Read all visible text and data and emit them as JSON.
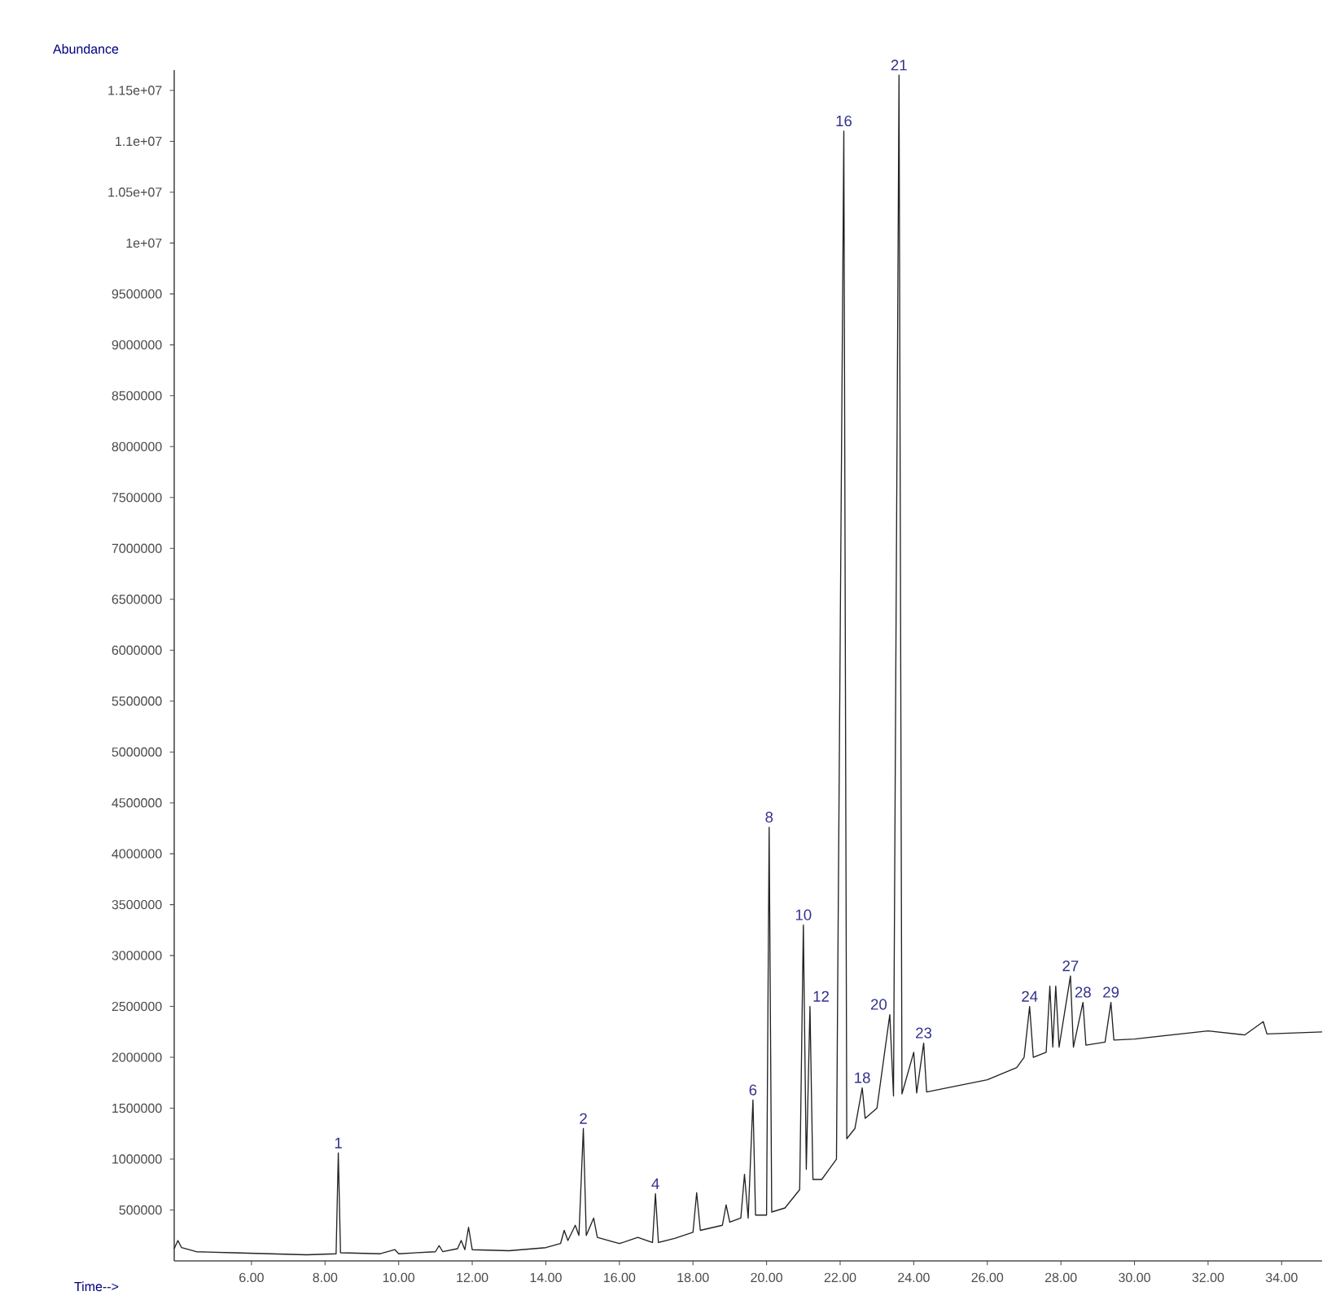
{
  "chart_data": {
    "type": "line",
    "xlabel": "Time-->",
    "ylabel": "Abundance",
    "xlim": [
      3.9,
      35.1
    ],
    "ylim": [
      0,
      11700000
    ],
    "xticks": [
      {
        "value": 6,
        "label": "6.00"
      },
      {
        "value": 8,
        "label": "8.00"
      },
      {
        "value": 10,
        "label": "10.00"
      },
      {
        "value": 12,
        "label": "12.00"
      },
      {
        "value": 14,
        "label": "14.00"
      },
      {
        "value": 16,
        "label": "16.00"
      },
      {
        "value": 18,
        "label": "18.00"
      },
      {
        "value": 20,
        "label": "20.00"
      },
      {
        "value": 22,
        "label": "22.00"
      },
      {
        "value": 24,
        "label": "24.00"
      },
      {
        "value": 26,
        "label": "26.00"
      },
      {
        "value": 28,
        "label": "28.00"
      },
      {
        "value": 30,
        "label": "30.00"
      },
      {
        "value": 32,
        "label": "32.00"
      },
      {
        "value": 34,
        "label": "34.00"
      }
    ],
    "yticks": [
      500000,
      1000000,
      1500000,
      2000000,
      2500000,
      3000000,
      3500000,
      4000000,
      4500000,
      5000000,
      5500000,
      6000000,
      6500000,
      7000000,
      7500000,
      8000000,
      8500000,
      9000000,
      9500000,
      {
        "value": 10000000,
        "label": "1e+07"
      },
      {
        "value": 10500000,
        "label": "1.05e+07"
      },
      {
        "value": 11000000,
        "label": "1.1e+07"
      },
      {
        "value": 11500000,
        "label": "1.15e+07"
      }
    ],
    "series": [
      {
        "color": "#222222",
        "x": [
          3.9,
          4.0,
          4.1,
          4.5,
          5.5,
          6.5,
          7.5,
          8.3,
          8.36,
          8.42,
          9.5,
          9.9,
          10.0,
          11.0,
          11.1,
          11.2,
          11.6,
          11.7,
          11.8,
          11.9,
          12.0,
          13.0,
          14.0,
          14.4,
          14.5,
          14.6,
          14.8,
          14.9,
          15.02,
          15.1,
          15.3,
          15.4,
          16.0,
          16.5,
          16.9,
          16.98,
          17.06,
          17.5,
          18.0,
          18.1,
          18.2,
          18.8,
          18.9,
          19.0,
          19.3,
          19.4,
          19.5,
          19.63,
          19.7,
          20.0,
          20.07,
          20.14,
          20.5,
          20.9,
          21.0,
          21.08,
          21.18,
          21.26,
          21.5,
          21.9,
          22.1,
          22.18,
          22.4,
          22.6,
          22.68,
          23.0,
          23.35,
          23.45,
          23.6,
          23.68,
          24.0,
          24.08,
          24.27,
          24.35,
          26.0,
          26.8,
          27.0,
          27.15,
          27.25,
          27.6,
          27.7,
          27.78,
          27.86,
          27.95,
          28.26,
          28.34,
          28.6,
          28.68,
          29.2,
          29.36,
          29.44,
          30.0,
          32.0,
          33.0,
          33.5,
          33.6,
          35.1
        ],
        "values": [
          120000,
          200000,
          130000,
          90000,
          80000,
          70000,
          60000,
          70000,
          1060000,
          80000,
          70000,
          110000,
          70000,
          90000,
          150000,
          90000,
          120000,
          200000,
          110000,
          330000,
          110000,
          100000,
          130000,
          170000,
          300000,
          200000,
          350000,
          250000,
          1300000,
          250000,
          420000,
          230000,
          170000,
          230000,
          180000,
          660000,
          180000,
          220000,
          280000,
          670000,
          300000,
          350000,
          550000,
          380000,
          420000,
          850000,
          420000,
          1580000,
          450000,
          450000,
          4260000,
          480000,
          520000,
          700000,
          3300000,
          900000,
          2500000,
          800000,
          800000,
          1000000,
          11100000,
          1200000,
          1300000,
          1700000,
          1400000,
          1500000,
          2420000,
          1620000,
          11650000,
          1640000,
          2050000,
          1650000,
          2140000,
          1660000,
          1780000,
          1900000,
          2000000,
          2500000,
          2000000,
          2050000,
          2700000,
          2100000,
          2700000,
          2100000,
          2800000,
          2100000,
          2540000,
          2120000,
          2150000,
          2540000,
          2170000,
          2180000,
          2260000,
          2220000,
          2350000,
          2230000,
          2250000
        ]
      }
    ],
    "annotations": [
      {
        "text": "1",
        "x": 8.36,
        "y": 1060000
      },
      {
        "text": "2",
        "x": 15.02,
        "y": 1300000
      },
      {
        "text": "4",
        "x": 16.98,
        "y": 660000
      },
      {
        "text": "6",
        "x": 19.63,
        "y": 1580000
      },
      {
        "text": "8",
        "x": 20.07,
        "y": 4260000
      },
      {
        "text": "10",
        "x": 21.0,
        "y": 3300000
      },
      {
        "text": "12",
        "x": 21.18,
        "y": 2500000
      },
      {
        "text": "16",
        "x": 22.1,
        "y": 11100000
      },
      {
        "text": "18",
        "x": 22.6,
        "y": 1700000
      },
      {
        "text": "20",
        "x": 23.35,
        "y": 2420000
      },
      {
        "text": "21",
        "x": 23.6,
        "y": 11650000
      },
      {
        "text": "23",
        "x": 24.27,
        "y": 2140000
      },
      {
        "text": "24",
        "x": 27.15,
        "y": 2500000
      },
      {
        "text": "27",
        "x": 28.26,
        "y": 2800000
      },
      {
        "text": "28",
        "x": 28.6,
        "y": 2540000
      },
      {
        "text": "29",
        "x": 29.36,
        "y": 2540000
      }
    ]
  }
}
